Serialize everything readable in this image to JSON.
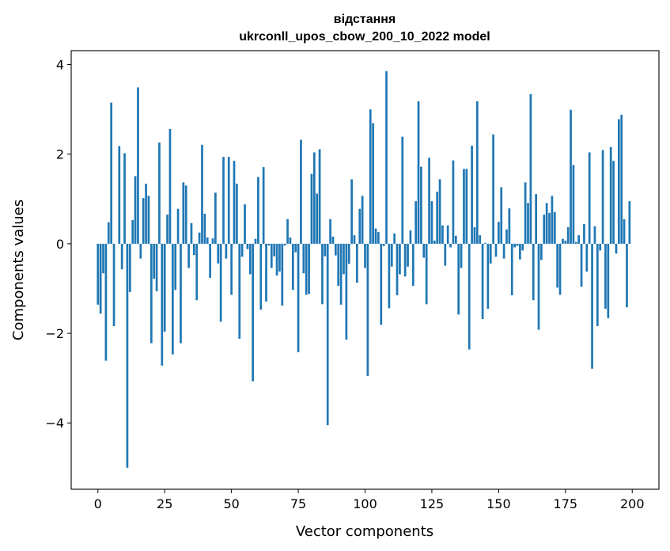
{
  "chart_data": {
    "type": "bar",
    "title_line1": "відстання",
    "title_line2": "ukrconll_upos_cbow_200_10_2022 model",
    "xlabel": "Vector components",
    "ylabel": "Components values",
    "xlim": [
      -10,
      210
    ],
    "ylim": [
      -5.48,
      4.31
    ],
    "xticks": [
      0,
      25,
      50,
      75,
      100,
      125,
      150,
      175,
      200
    ],
    "xtick_labels": [
      "0",
      "25",
      "50",
      "75",
      "100",
      "125",
      "150",
      "175",
      "200"
    ],
    "yticks": [
      -4,
      -2,
      0,
      2,
      4
    ],
    "ytick_labels": [
      "−4",
      "−2",
      "0",
      "2",
      "4"
    ],
    "grid": false,
    "color": "#1f77b4",
    "values": [
      -1.36,
      -1.56,
      -0.66,
      -2.61,
      0.48,
      3.15,
      -1.84,
      0.0,
      2.18,
      -0.57,
      2.02,
      -5.0,
      -1.08,
      0.53,
      1.51,
      3.49,
      -0.33,
      1.02,
      1.34,
      1.07,
      -2.22,
      -0.78,
      -1.06,
      2.26,
      -2.72,
      -1.96,
      0.65,
      2.56,
      -2.47,
      -1.03,
      0.78,
      -2.22,
      1.37,
      1.3,
      -0.54,
      0.46,
      -0.25,
      -1.26,
      0.25,
      2.21,
      0.67,
      0.14,
      -0.76,
      0.12,
      1.14,
      -0.44,
      -1.74,
      1.94,
      -0.33,
      1.94,
      -1.14,
      1.85,
      1.34,
      -2.12,
      -0.29,
      0.88,
      -0.12,
      -0.68,
      -3.07,
      0.11,
      1.49,
      -1.47,
      1.71,
      -1.29,
      -0.04,
      -0.54,
      -0.28,
      -0.71,
      -0.62,
      -1.38,
      -0.04,
      0.55,
      0.14,
      -1.03,
      -0.19,
      -2.42,
      2.32,
      -0.66,
      -1.14,
      -1.12,
      1.56,
      2.04,
      1.12,
      2.11,
      -1.35,
      -0.28,
      -4.05,
      0.55,
      0.16,
      -0.26,
      -0.94,
      -1.36,
      -0.68,
      -2.14,
      -0.45,
      1.44,
      0.19,
      -0.87,
      0.78,
      1.07,
      -0.54,
      -2.95,
      3.0,
      2.69,
      0.34,
      0.26,
      -1.81,
      -0.05,
      3.85,
      -1.44,
      -0.51,
      0.23,
      -1.15,
      -0.68,
      2.39,
      -0.73,
      -0.51,
      0.3,
      -0.94,
      0.95,
      3.18,
      1.72,
      -0.31,
      -1.35,
      1.92,
      0.95,
      0.07,
      1.16,
      1.44,
      0.41,
      -0.49,
      0.41,
      -0.08,
      1.86,
      0.18,
      -1.58,
      -0.54,
      1.67,
      1.67,
      -2.36,
      2.19,
      0.37,
      3.18,
      0.19,
      -1.68,
      0.02,
      -1.45,
      -0.44,
      2.44,
      -0.29,
      0.49,
      1.26,
      -0.33,
      0.32,
      0.79,
      -1.15,
      -0.08,
      -0.05,
      -0.35,
      -0.15,
      1.37,
      0.91,
      3.34,
      -1.26,
      1.11,
      -1.92,
      -0.36,
      0.65,
      0.91,
      0.69,
      1.07,
      0.71,
      -0.98,
      -1.14,
      0.11,
      0.07,
      0.37,
      2.99,
      1.76,
      0.04,
      0.19,
      -0.96,
      0.44,
      -0.62,
      2.04,
      -2.79,
      0.39,
      -1.84,
      -0.15,
      2.09,
      -1.45,
      -1.66,
      2.16,
      1.85,
      -0.22,
      2.78,
      2.88,
      0.55,
      -1.42,
      0.95
    ]
  }
}
